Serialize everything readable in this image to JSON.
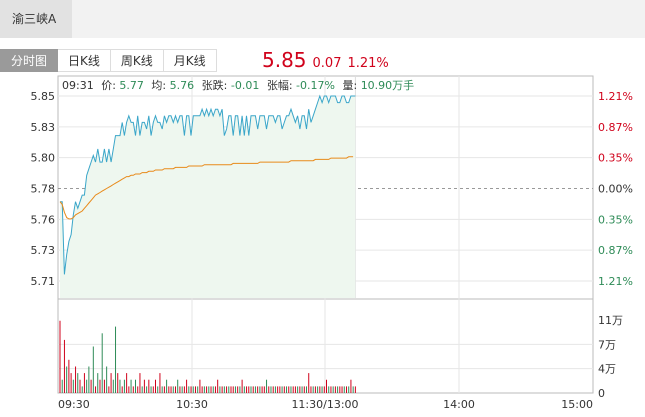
{
  "header": {
    "stock_name": "渝三峡A"
  },
  "tabs": [
    {
      "label": "分时图",
      "active": true
    },
    {
      "label": "日K线",
      "active": false
    },
    {
      "label": "周K线",
      "active": false
    },
    {
      "label": "月K线",
      "active": false
    }
  ],
  "quote": {
    "price": "5.85",
    "change": "0.07",
    "change_pct": "1.21%"
  },
  "info_bar": {
    "time": "09:31",
    "price_label": "价:",
    "price": "5.77",
    "avg_label": "均:",
    "avg": "5.76",
    "change_label": "张跌:",
    "change": "-0.01",
    "pct_label": "张幅:",
    "pct": "-0.17%",
    "volume_label": "量:",
    "volume": "10.90万手"
  },
  "colors": {
    "up": "#d0021b",
    "down": "#2e8b57",
    "price_line": "#3aa6c9",
    "avg_line": "#e88a1a",
    "grid": "#e6e6e6",
    "fill": "#eef7ef"
  },
  "chart_data": {
    "type": "line",
    "y_ticks_left": [
      "5.85",
      "5.83",
      "5.80",
      "5.78",
      "5.76",
      "5.73",
      "5.71"
    ],
    "y_ticks_right": [
      "1.21%",
      "0.87%",
      "0.35%",
      "0.00%",
      "0.35%",
      "0.87%",
      "1.21%"
    ],
    "ylim": [
      5.71,
      5.85
    ],
    "prev_close": 5.78,
    "x_ticks": [
      "09:30",
      "10:30",
      "11:30/13:00",
      "14:00",
      "15:00"
    ],
    "volume_ticks": [
      "11万",
      "7万",
      "4万",
      "0"
    ],
    "volume_max": 11,
    "series": [
      {
        "values": [
          5.77,
          5.77,
          5.715,
          5.73,
          5.74,
          5.745,
          5.76,
          5.77,
          5.765,
          5.77,
          5.775,
          5.775,
          5.79,
          5.795,
          5.8,
          5.805,
          5.8,
          5.81,
          5.8,
          5.8,
          5.81,
          5.8,
          5.81,
          5.8,
          5.81,
          5.82,
          5.82,
          5.82,
          5.83,
          5.82,
          5.83,
          5.835,
          5.83,
          5.83,
          5.82,
          5.835,
          5.82,
          5.83,
          5.83,
          5.825,
          5.835,
          5.82,
          5.83,
          5.835,
          5.83,
          5.83,
          5.825,
          5.835,
          5.83,
          5.835,
          5.835,
          5.83,
          5.835,
          5.83,
          5.835,
          5.835,
          5.82,
          5.835,
          5.835,
          5.82,
          5.835,
          5.835,
          5.835,
          5.835,
          5.84,
          5.835,
          5.84,
          5.835,
          5.84,
          5.835,
          5.84,
          5.84,
          5.835,
          5.84,
          5.82,
          5.825,
          5.835,
          5.835,
          5.82,
          5.835,
          5.835,
          5.82,
          5.835,
          5.82,
          5.835,
          5.82,
          5.835,
          5.835,
          5.835,
          5.825,
          5.835,
          5.835,
          5.835,
          5.825,
          5.835,
          5.835,
          5.835,
          5.83,
          5.835,
          5.835,
          5.825,
          5.83,
          5.835,
          5.835,
          5.84,
          5.835,
          5.83,
          5.835,
          5.825,
          5.835,
          5.835,
          5.825,
          5.84,
          5.83,
          5.835,
          5.84,
          5.845,
          5.85,
          5.845,
          5.85,
          5.85,
          5.845,
          5.85,
          5.85,
          5.85,
          5.845,
          5.845,
          5.85,
          5.85,
          5.845,
          5.845,
          5.85,
          5.85,
          5.85
        ]
      },
      {
        "values": [
          5.77,
          5.768,
          5.762,
          5.758,
          5.757,
          5.757,
          5.758,
          5.76,
          5.761,
          5.762,
          5.763,
          5.765,
          5.767,
          5.769,
          5.771,
          5.773,
          5.775,
          5.776,
          5.777,
          5.778,
          5.779,
          5.78,
          5.781,
          5.782,
          5.783,
          5.784,
          5.785,
          5.786,
          5.787,
          5.788,
          5.789,
          5.789,
          5.79,
          5.79,
          5.791,
          5.791,
          5.791,
          5.792,
          5.792,
          5.792,
          5.793,
          5.793,
          5.793,
          5.794,
          5.794,
          5.794,
          5.794,
          5.795,
          5.795,
          5.795,
          5.795,
          5.795,
          5.796,
          5.796,
          5.796,
          5.796,
          5.796,
          5.796,
          5.797,
          5.797,
          5.797,
          5.797,
          5.797,
          5.797,
          5.797,
          5.798,
          5.798,
          5.798,
          5.798,
          5.798,
          5.798,
          5.798,
          5.798,
          5.798,
          5.798,
          5.798,
          5.798,
          5.798,
          5.799,
          5.799,
          5.799,
          5.799,
          5.799,
          5.799,
          5.799,
          5.799,
          5.799,
          5.799,
          5.799,
          5.799,
          5.8,
          5.8,
          5.8,
          5.8,
          5.8,
          5.8,
          5.8,
          5.8,
          5.8,
          5.8,
          5.8,
          5.8,
          5.8,
          5.8,
          5.801,
          5.801,
          5.801,
          5.801,
          5.801,
          5.801,
          5.801,
          5.801,
          5.801,
          5.801,
          5.801,
          5.802,
          5.802,
          5.802,
          5.802,
          5.802,
          5.802,
          5.802,
          5.803,
          5.803,
          5.803,
          5.803,
          5.803,
          5.803,
          5.803,
          5.803,
          5.804,
          5.804,
          5.804
        ]
      }
    ],
    "volumes": [
      10.9,
      2,
      8,
      4,
      5,
      3,
      2,
      4,
      3,
      2,
      1,
      3,
      2,
      4,
      2,
      7,
      1,
      3,
      2,
      9,
      2,
      4,
      1,
      3,
      2,
      10,
      3,
      2,
      1,
      2,
      3,
      1,
      2,
      1,
      2,
      1,
      3,
      1,
      2,
      1,
      2,
      1,
      1,
      2,
      1,
      3,
      1,
      1,
      2,
      1,
      1,
      1,
      1,
      2,
      1,
      1,
      1,
      2,
      1,
      1,
      1,
      1,
      1,
      2,
      1,
      1,
      1,
      1,
      1,
      1,
      1,
      2,
      1,
      1,
      1,
      1,
      1,
      1,
      1,
      1,
      1,
      1,
      2,
      1,
      1,
      1,
      1,
      1,
      1,
      1,
      1,
      1,
      1,
      2,
      1,
      1,
      1,
      1,
      1,
      1,
      1,
      1,
      1,
      1,
      1,
      1,
      1,
      1,
      1,
      1,
      1,
      1,
      3,
      1,
      1,
      1,
      1,
      1,
      1,
      1,
      2,
      1,
      1,
      1,
      1,
      1,
      1,
      1,
      1,
      1,
      1,
      2,
      1,
      1
    ],
    "volume_up": [
      1,
      0,
      1,
      0,
      1,
      1,
      0,
      1,
      0,
      1,
      0,
      1,
      0,
      0,
      1,
      0,
      1,
      0,
      1,
      0,
      1,
      0,
      1,
      1,
      0,
      0,
      1,
      0,
      1,
      0,
      1,
      1,
      0,
      1,
      0,
      1,
      1,
      0,
      1,
      0,
      1,
      0,
      1,
      1,
      0,
      1,
      0,
      1,
      0,
      1,
      1,
      0,
      1,
      0,
      1,
      0,
      1,
      1,
      0,
      1,
      0,
      1,
      0,
      1,
      1,
      0,
      1,
      0,
      1,
      0,
      1,
      1,
      0,
      1,
      0,
      1,
      0,
      1,
      1,
      0,
      1,
      0,
      1,
      0,
      1,
      1,
      0,
      1,
      0,
      1,
      0,
      1,
      1,
      0,
      1,
      0,
      1,
      0,
      1,
      1,
      0,
      1,
      0,
      1,
      0,
      1,
      1,
      0,
      1,
      0,
      1,
      0,
      1,
      1,
      0,
      1,
      0,
      1,
      0,
      1,
      1,
      0,
      1,
      0,
      1,
      0,
      1,
      1,
      0,
      1,
      0,
      1,
      0,
      1
    ]
  }
}
